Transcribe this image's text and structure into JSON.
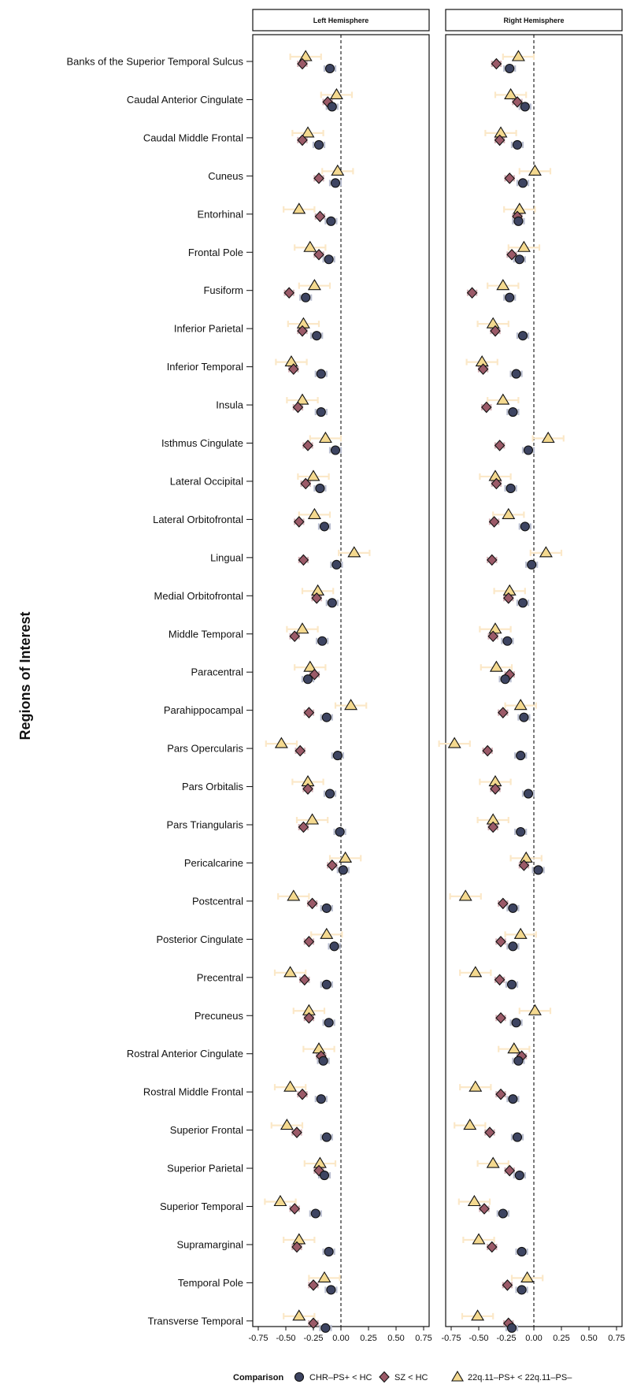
{
  "chart_data": {
    "type": "scatter",
    "ylabel": "Regions of Interest",
    "xlim": [
      -0.8,
      0.8
    ],
    "x_ticks": [
      "-0.75",
      "-0.50",
      "-0.25",
      "0.00",
      "0.25",
      "0.50",
      "0.75"
    ],
    "reference_line_x": 0,
    "panels": [
      {
        "title": "Left Hemisphere",
        "series": [
          {
            "name": "CHR–PS+ < HC",
            "x": [
              -0.1,
              -0.08,
              -0.2,
              -0.05,
              -0.09,
              -0.11,
              -0.32,
              -0.22,
              -0.18,
              -0.18,
              -0.05,
              -0.19,
              -0.15,
              -0.04,
              -0.08,
              -0.17,
              -0.3,
              -0.13,
              -0.03,
              -0.1,
              -0.01,
              0.02,
              -0.13,
              -0.06,
              -0.13,
              -0.11,
              -0.16,
              -0.18,
              -0.13,
              -0.15,
              -0.23,
              -0.11,
              -0.09,
              -0.14
            ],
            "err": [
              0.05,
              0.05,
              0.05,
              0.05,
              0.05,
              0.05,
              0.05,
              0.05,
              0.05,
              0.05,
              0.05,
              0.05,
              0.05,
              0.05,
              0.05,
              0.05,
              0.05,
              0.05,
              0.05,
              0.05,
              0.05,
              0.05,
              0.05,
              0.05,
              0.05,
              0.05,
              0.05,
              0.05,
              0.05,
              0.05,
              0.05,
              0.05,
              0.05,
              0.05
            ]
          },
          {
            "name": "SZ < HC",
            "x": [
              -0.35,
              -0.12,
              -0.35,
              -0.2,
              -0.19,
              -0.2,
              -0.47,
              -0.35,
              -0.43,
              -0.39,
              -0.3,
              -0.32,
              -0.38,
              -0.34,
              -0.22,
              -0.42,
              -0.24,
              -0.29,
              -0.37,
              -0.3,
              -0.34,
              -0.08,
              -0.26,
              -0.29,
              -0.33,
              -0.29,
              -0.18,
              -0.35,
              -0.4,
              -0.2,
              -0.42,
              -0.4,
              -0.25,
              -0.25
            ],
            "err": [
              0.04,
              0.04,
              0.04,
              0.04,
              0.04,
              0.04,
              0.04,
              0.04,
              0.04,
              0.04,
              0.04,
              0.04,
              0.04,
              0.04,
              0.04,
              0.04,
              0.04,
              0.04,
              0.04,
              0.04,
              0.04,
              0.04,
              0.04,
              0.04,
              0.04,
              0.04,
              0.04,
              0.04,
              0.04,
              0.04,
              0.04,
              0.04,
              0.04,
              0.04
            ]
          },
          {
            "name": "22q.11–PS+ < 22q.11–PS–",
            "x": [
              -0.32,
              -0.04,
              -0.3,
              -0.03,
              -0.38,
              -0.28,
              -0.24,
              -0.34,
              -0.45,
              -0.35,
              -0.14,
              -0.25,
              -0.24,
              0.12,
              -0.21,
              -0.35,
              -0.28,
              0.09,
              -0.54,
              -0.3,
              -0.26,
              0.04,
              -0.43,
              -0.13,
              -0.46,
              -0.29,
              -0.2,
              -0.46,
              -0.49,
              -0.19,
              -0.55,
              -0.38,
              -0.15,
              -0.38
            ],
            "err": [
              0.14,
              0.14,
              0.14,
              0.14,
              0.14,
              0.14,
              0.14,
              0.14,
              0.14,
              0.14,
              0.14,
              0.14,
              0.14,
              0.14,
              0.14,
              0.14,
              0.14,
              0.14,
              0.14,
              0.14,
              0.14,
              0.14,
              0.14,
              0.14,
              0.14,
              0.14,
              0.14,
              0.14,
              0.14,
              0.14,
              0.14,
              0.14,
              0.14,
              0.14
            ]
          }
        ]
      },
      {
        "title": "Right Hemisphere",
        "series": [
          {
            "name": "CHR–PS+ < HC",
            "x": [
              -0.22,
              -0.08,
              -0.15,
              -0.1,
              -0.14,
              -0.13,
              -0.22,
              -0.1,
              -0.16,
              -0.19,
              -0.05,
              -0.21,
              -0.08,
              -0.02,
              -0.1,
              -0.24,
              -0.26,
              -0.09,
              -0.12,
              -0.05,
              -0.12,
              0.04,
              -0.19,
              -0.19,
              -0.2,
              -0.16,
              -0.14,
              -0.19,
              -0.15,
              -0.13,
              -0.28,
              -0.11,
              -0.11,
              -0.2
            ],
            "err": [
              0.05,
              0.05,
              0.05,
              0.05,
              0.05,
              0.05,
              0.05,
              0.05,
              0.05,
              0.05,
              0.05,
              0.05,
              0.05,
              0.05,
              0.05,
              0.05,
              0.05,
              0.05,
              0.05,
              0.05,
              0.05,
              0.05,
              0.05,
              0.05,
              0.05,
              0.05,
              0.05,
              0.05,
              0.05,
              0.05,
              0.05,
              0.05,
              0.05,
              0.05
            ]
          },
          {
            "name": "SZ < HC",
            "x": [
              -0.34,
              -0.15,
              -0.31,
              -0.22,
              -0.15,
              -0.2,
              -0.56,
              -0.35,
              -0.46,
              -0.43,
              -0.31,
              -0.34,
              -0.36,
              -0.38,
              -0.23,
              -0.37,
              -0.22,
              -0.28,
              -0.42,
              -0.35,
              -0.37,
              -0.09,
              -0.28,
              -0.3,
              -0.31,
              -0.3,
              -0.11,
              -0.3,
              -0.4,
              -0.22,
              -0.45,
              -0.38,
              -0.24,
              -0.23
            ],
            "err": [
              0.04,
              0.04,
              0.04,
              0.04,
              0.04,
              0.04,
              0.04,
              0.04,
              0.04,
              0.04,
              0.04,
              0.04,
              0.04,
              0.04,
              0.04,
              0.04,
              0.04,
              0.04,
              0.04,
              0.04,
              0.04,
              0.04,
              0.04,
              0.04,
              0.04,
              0.04,
              0.04,
              0.04,
              0.04,
              0.04,
              0.04,
              0.04,
              0.04,
              0.04
            ]
          },
          {
            "name": "22q.11–PS+ < 22q.11–PS–",
            "x": [
              -0.14,
              -0.21,
              -0.3,
              0.01,
              -0.13,
              -0.09,
              -0.28,
              -0.37,
              -0.47,
              -0.28,
              0.13,
              -0.35,
              -0.23,
              0.11,
              -0.22,
              -0.35,
              -0.34,
              -0.12,
              -0.72,
              -0.35,
              -0.37,
              -0.07,
              -0.62,
              -0.12,
              -0.53,
              0.01,
              -0.18,
              -0.53,
              -0.58,
              -0.37,
              -0.54,
              -0.5,
              -0.06,
              -0.51
            ],
            "err": [
              0.14,
              0.14,
              0.14,
              0.14,
              0.14,
              0.14,
              0.14,
              0.14,
              0.14,
              0.14,
              0.14,
              0.14,
              0.14,
              0.14,
              0.14,
              0.14,
              0.14,
              0.14,
              0.14,
              0.14,
              0.14,
              0.14,
              0.14,
              0.14,
              0.14,
              0.14,
              0.14,
              0.14,
              0.14,
              0.14,
              0.14,
              0.14,
              0.14,
              0.14
            ]
          }
        ]
      }
    ],
    "categories": [
      "Banks of the Superior Temporal Sulcus",
      "Caudal Anterior Cingulate",
      "Caudal Middle Frontal",
      "Cuneus",
      "Entorhinal",
      "Frontal Pole",
      "Fusiform",
      "Inferior Parietal",
      "Inferior Temporal",
      "Insula",
      "Isthmus Cingulate",
      "Lateral Occipital",
      "Lateral Orbitofrontal",
      "Lingual",
      "Medial Orbitofrontal",
      "Middle Temporal",
      "Paracentral",
      "Parahippocampal",
      "Pars Opercularis",
      "Pars Orbitalis",
      "Pars Triangularis",
      "Pericalcarine",
      "Postcentral",
      "Posterior Cingulate",
      "Precentral",
      "Precuneus",
      "Rostral Anterior Cingulate",
      "Rostral Middle Frontal",
      "Superior Frontal",
      "Superior Parietal",
      "Superior Temporal",
      "Supramarginal",
      "Temporal Pole",
      "Transverse Temporal"
    ],
    "legend": {
      "title": "Comparison",
      "placement": "bottom",
      "items": [
        {
          "label": "CHR–PS+ < HC",
          "shape": "circle",
          "fill": "#3d4461",
          "err_color": "#b9bed0"
        },
        {
          "label": "SZ < HC",
          "shape": "diamond",
          "fill": "#9b5a68",
          "err_color": "#d7b3b8"
        },
        {
          "label": "22q.11–PS+ < 22q.11–PS–",
          "shape": "triangle",
          "fill": "#f4d98f",
          "err_color": "#fbe8c8"
        }
      ]
    }
  }
}
